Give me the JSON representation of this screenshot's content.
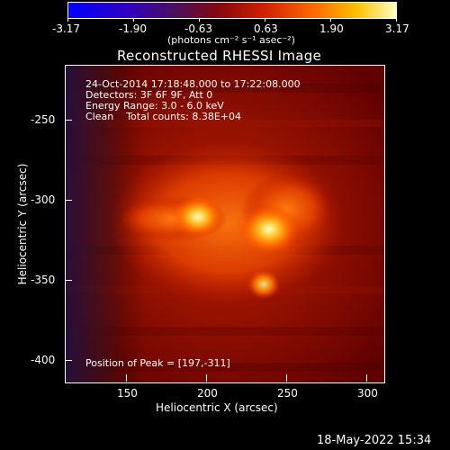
{
  "colorbar": {
    "ticks": [
      "-3.17",
      "-1.90",
      "-0.63",
      "0.63",
      "1.90",
      "3.17"
    ],
    "units_label": "(photons cm⁻² s⁻¹ asec⁻²)",
    "colors": [
      "#0000ff",
      "#2a00b0",
      "#3a1a60",
      "#7a1010",
      "#c02000",
      "#ff6000",
      "#ffb000",
      "#ffffa0"
    ]
  },
  "plot": {
    "title": "Reconstructed RHESSI Image",
    "annotation_lines": [
      "24-Oct-2014 17:18:48.000 to 17:22:08.000",
      "Detectors: 3F 6F 9F, Att 0",
      "Energy Range: 3.0 - 6.0 keV",
      "Clean    Total counts: 8.38E+04"
    ],
    "peak_text": "Position of Peak = [197,-311]",
    "xlabel": "Heliocentric X (arcsec)",
    "ylabel": "Heliocentric Y (arcsec)",
    "x_ticks": [
      "150",
      "200",
      "250",
      "300"
    ],
    "y_ticks": [
      "-250",
      "-300",
      "-350",
      "-400"
    ],
    "bg_color": "#800000"
  },
  "timestamp": "18-May-2022 15:34"
}
